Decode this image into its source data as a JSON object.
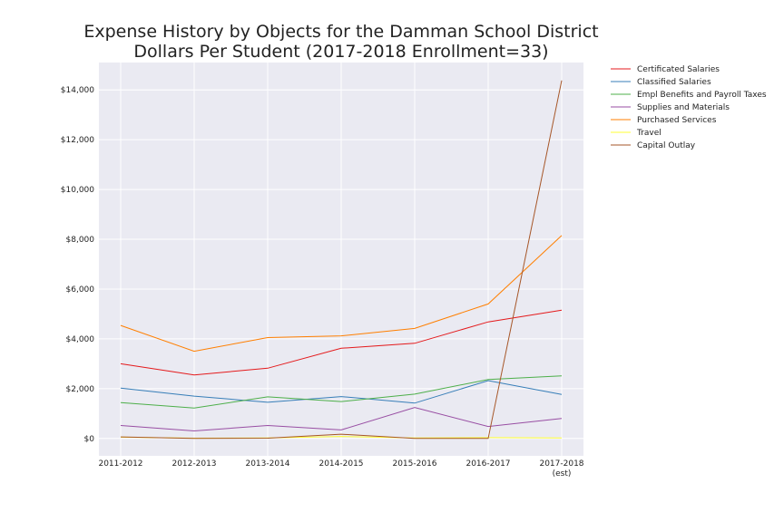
{
  "chart_data": {
    "type": "line",
    "title": [
      "Expense History by Objects for the Damman School District",
      "Dollars Per Student (2017-2018 Enrollment=33)"
    ],
    "xlabel": "",
    "ylabel": "",
    "categories": [
      "2011-2012",
      "2012-2013",
      "2013-2014",
      "2014-2015",
      "2015-2016",
      "2016-2017",
      "2017-2018"
    ],
    "category_sublabels": [
      "",
      "",
      "",
      "",
      "",
      "",
      "(est)"
    ],
    "ylim": [
      -700,
      15100
    ],
    "yticks": [
      0,
      2000,
      4000,
      6000,
      8000,
      10000,
      12000,
      14000
    ],
    "ytick_labels": [
      "$0",
      "$2,000",
      "$4,000",
      "$6,000",
      "$8,000",
      "$10,000",
      "$12,000",
      "$14,000"
    ],
    "grid": true,
    "legend_position": "outside-right",
    "series": [
      {
        "name": "Certificated Salaries",
        "color": "#e41a1c",
        "values": [
          3000,
          2550,
          2820,
          3620,
          3820,
          4680,
          5150
        ]
      },
      {
        "name": "Classified Salaries",
        "color": "#377eb8",
        "values": [
          2020,
          1700,
          1450,
          1680,
          1420,
          2320,
          1770
        ]
      },
      {
        "name": "Empl Benefits and Payroll Taxes",
        "color": "#4daf4a",
        "values": [
          1440,
          1220,
          1670,
          1480,
          1780,
          2370,
          2510
        ]
      },
      {
        "name": "Supplies and Materials",
        "color": "#984ea3",
        "values": [
          520,
          300,
          520,
          340,
          1240,
          480,
          800
        ]
      },
      {
        "name": "Purchased Services",
        "color": "#ff7f00",
        "values": [
          4540,
          3500,
          4050,
          4120,
          4420,
          5400,
          8150
        ]
      },
      {
        "name": "Travel",
        "color": "#ffff33",
        "values": [
          50,
          10,
          20,
          80,
          20,
          30,
          20
        ]
      },
      {
        "name": "Capital Outlay",
        "color": "#a65628",
        "values": [
          60,
          0,
          10,
          170,
          0,
          0,
          14380
        ]
      }
    ]
  }
}
